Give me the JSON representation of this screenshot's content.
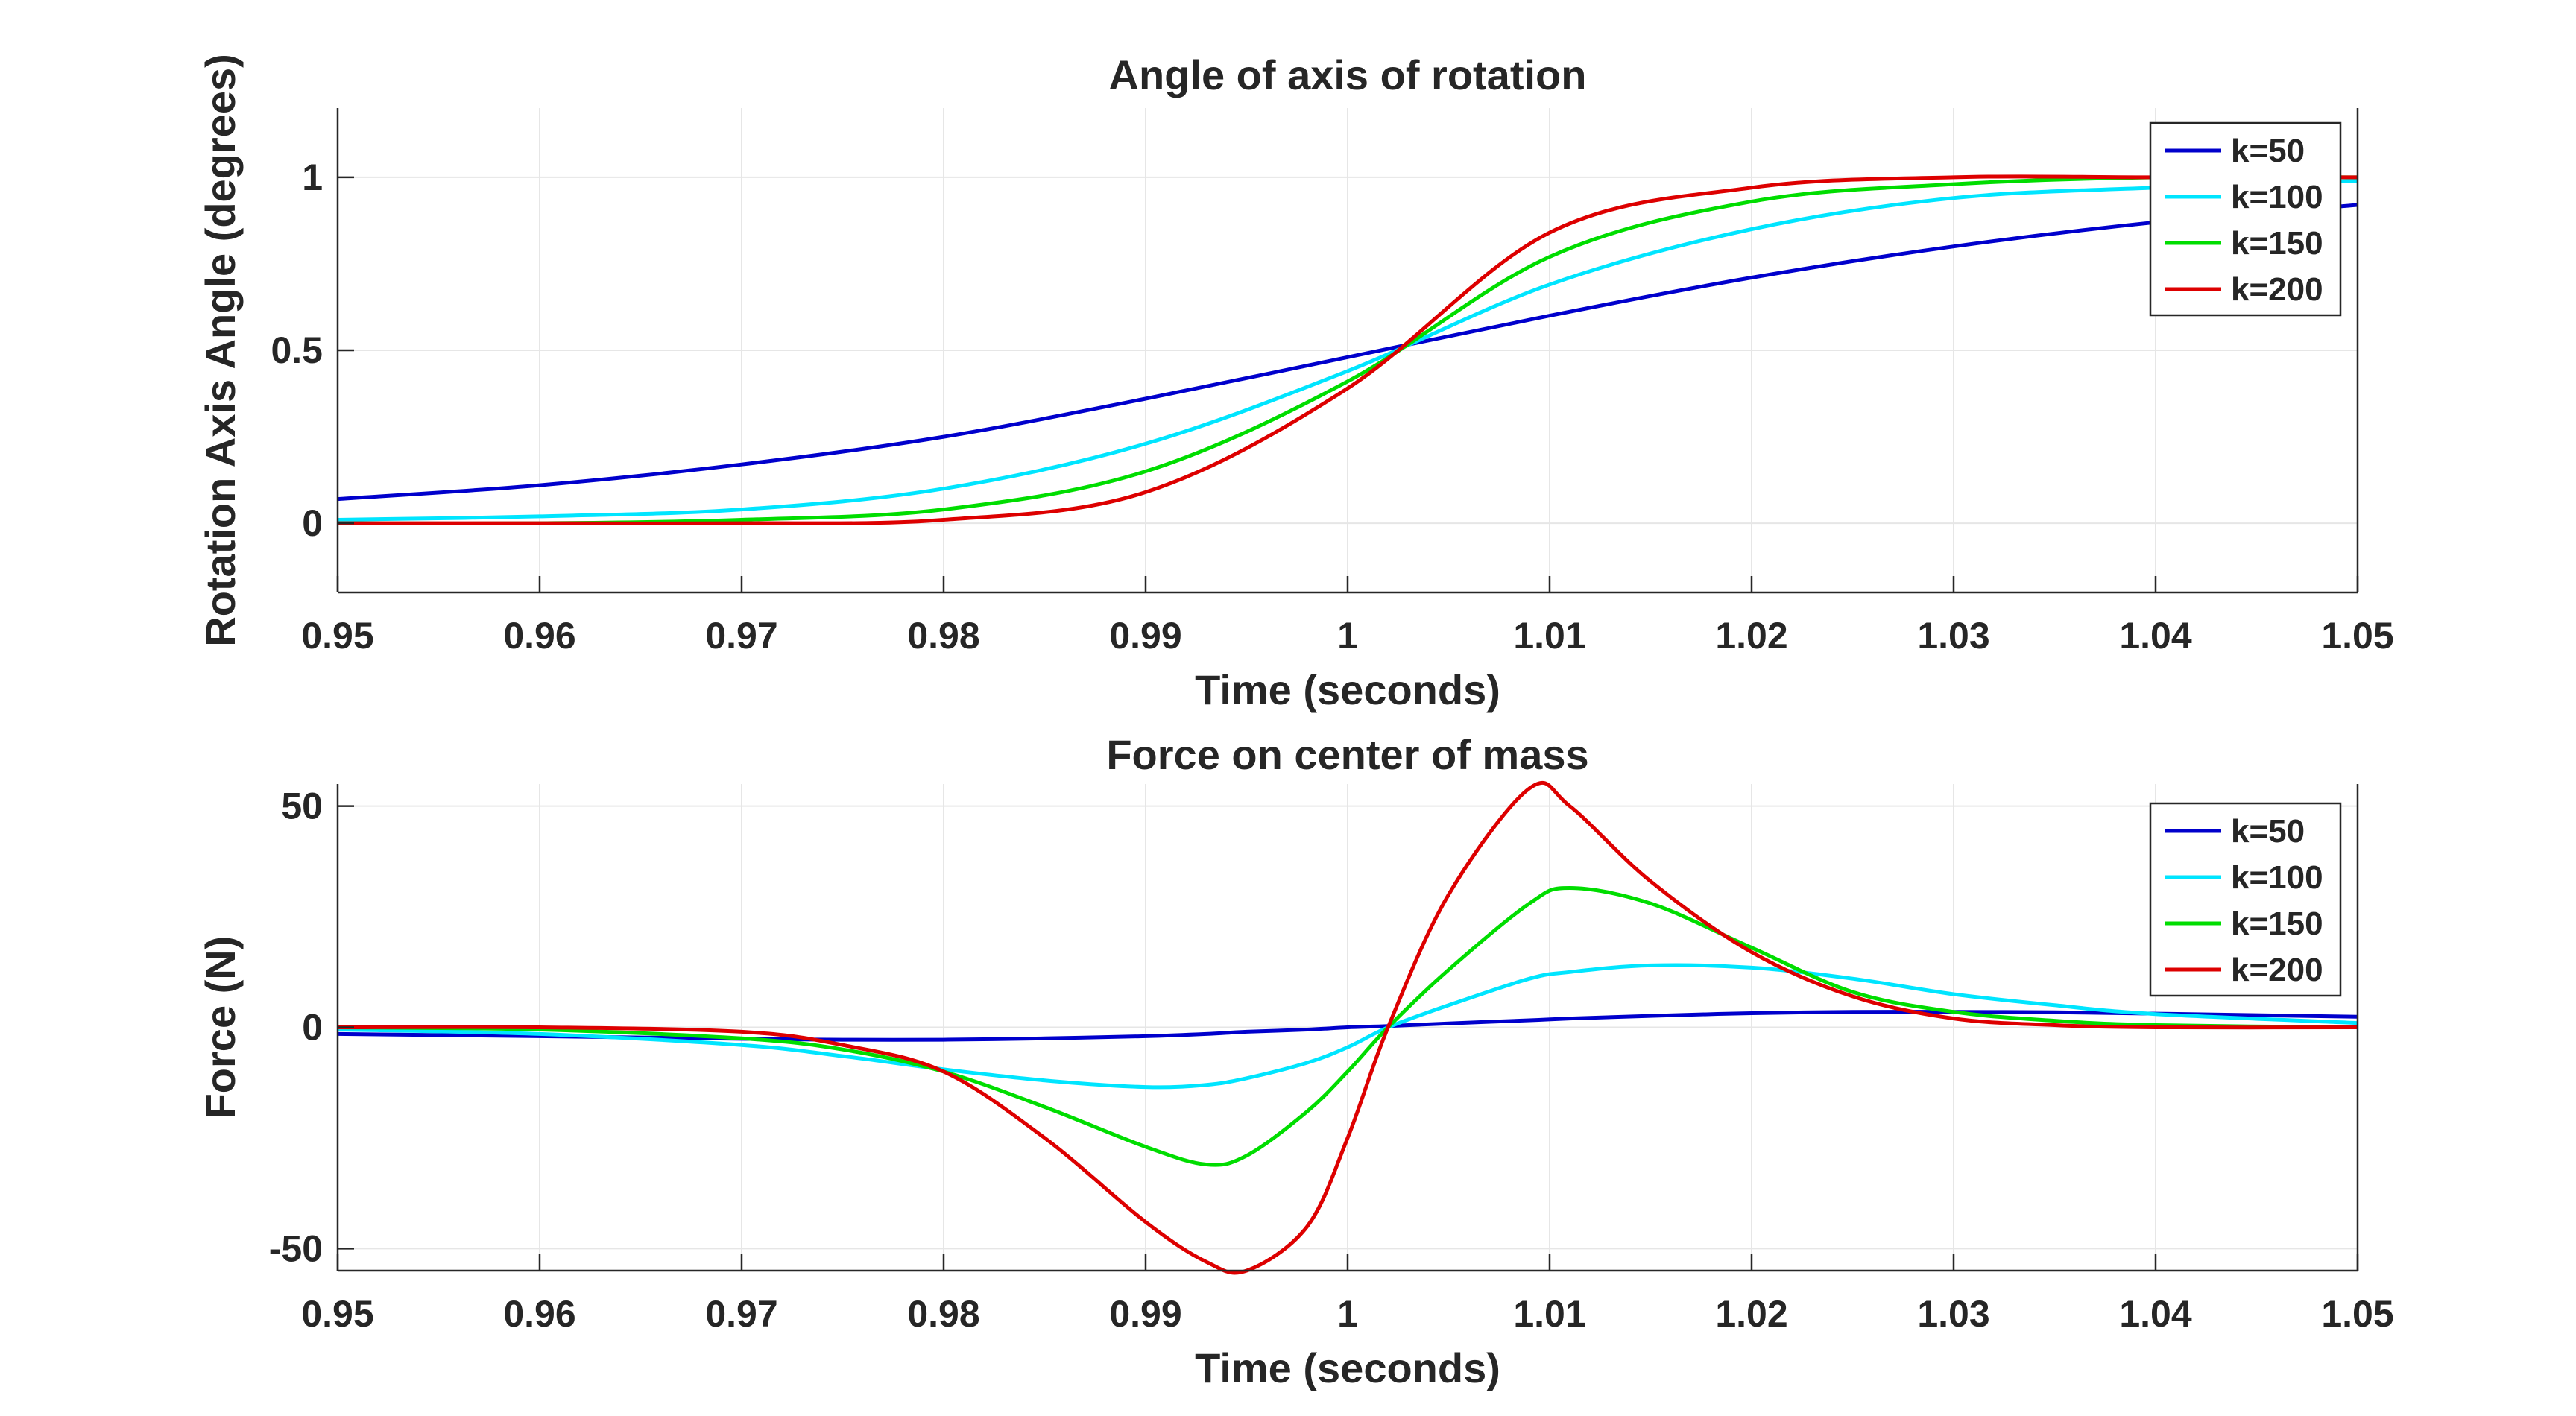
{
  "chart_data": [
    {
      "type": "line",
      "title": "Angle of axis of rotation",
      "xlabel": "Time (seconds)",
      "ylabel": "Rotation Axis Angle (degrees)",
      "xlim": [
        0.95,
        1.05
      ],
      "ylim": [
        -0.2,
        1.2
      ],
      "xticks": [
        0.95,
        0.96,
        0.97,
        0.98,
        0.99,
        1.0,
        1.01,
        1.02,
        1.03,
        1.04,
        1.05
      ],
      "xtick_labels": [
        "0.95",
        "0.96",
        "0.97",
        "0.98",
        "0.99",
        "1",
        "1.01",
        "1.02",
        "1.03",
        "1.04",
        "1.05"
      ],
      "yticks": [
        0,
        0.5,
        1
      ],
      "ytick_labels": [
        "0",
        "0.5",
        "1"
      ],
      "grid": true,
      "legend": "top-right",
      "x": [
        0.95,
        0.96,
        0.97,
        0.98,
        0.99,
        1.0,
        1.01,
        1.02,
        1.03,
        1.04,
        1.05
      ],
      "series": [
        {
          "name": "k=50",
          "color": "#0000cc",
          "values": [
            0.07,
            0.11,
            0.17,
            0.25,
            0.36,
            0.48,
            0.6,
            0.71,
            0.8,
            0.87,
            0.92
          ]
        },
        {
          "name": "k=100",
          "color": "#00e5ff",
          "values": [
            0.01,
            0.02,
            0.04,
            0.1,
            0.23,
            0.44,
            0.69,
            0.85,
            0.94,
            0.97,
            0.99
          ]
        },
        {
          "name": "k=150",
          "color": "#00dd00",
          "values": [
            0.0,
            0.0,
            0.01,
            0.04,
            0.15,
            0.41,
            0.77,
            0.93,
            0.98,
            1.0,
            1.0
          ]
        },
        {
          "name": "k=200",
          "color": "#dd0000",
          "values": [
            0.0,
            0.0,
            0.0,
            0.01,
            0.09,
            0.39,
            0.84,
            0.97,
            1.0,
            1.0,
            1.0
          ]
        }
      ]
    },
    {
      "type": "line",
      "title": "Force on center of mass",
      "xlabel": "Time (seconds)",
      "ylabel": "Force (N)",
      "xlim": [
        0.95,
        1.05
      ],
      "ylim": [
        -55,
        55
      ],
      "xticks": [
        0.95,
        0.96,
        0.97,
        0.98,
        0.99,
        1.0,
        1.01,
        1.02,
        1.03,
        1.04,
        1.05
      ],
      "xtick_labels": [
        "0.95",
        "0.96",
        "0.97",
        "0.98",
        "0.99",
        "1",
        "1.01",
        "1.02",
        "1.03",
        "1.04",
        "1.05"
      ],
      "yticks": [
        -50,
        0,
        50
      ],
      "ytick_labels": [
        "-50",
        "0",
        "50"
      ],
      "grid": true,
      "legend": "top-right",
      "x": [
        0.95,
        0.96,
        0.97,
        0.975,
        0.98,
        0.985,
        0.99,
        0.993,
        0.995,
        0.998,
        1.0,
        1.002,
        1.005,
        1.009,
        1.011,
        1.015,
        1.02,
        1.025,
        1.03,
        1.035,
        1.04,
        1.05
      ],
      "series": [
        {
          "name": "k=50",
          "color": "#0000cc",
          "values": [
            -1.5,
            -2.0,
            -2.6,
            -2.8,
            -2.8,
            -2.5,
            -2.0,
            -1.5,
            -1.0,
            -0.5,
            0.0,
            0.3,
            0.9,
            1.6,
            2.0,
            2.6,
            3.2,
            3.5,
            3.5,
            3.4,
            3.1,
            2.4
          ]
        },
        {
          "name": "k=100",
          "color": "#00e5ff",
          "values": [
            -0.5,
            -1.5,
            -4.0,
            -6.5,
            -9.5,
            -12.0,
            -13.5,
            -13.0,
            -11.5,
            -8.0,
            -4.5,
            0.0,
            5.0,
            11.0,
            12.5,
            14.0,
            13.5,
            11.0,
            7.5,
            5.0,
            3.0,
            1.0
          ]
        },
        {
          "name": "k=150",
          "color": "#00dd00",
          "values": [
            0.0,
            -0.5,
            -2.5,
            -5.0,
            -10.0,
            -18.0,
            -27.0,
            -31.0,
            -29.0,
            -19.0,
            -10.0,
            0.0,
            13.0,
            28.0,
            31.5,
            28.0,
            18.0,
            8.0,
            3.5,
            1.5,
            0.5,
            0.0
          ]
        },
        {
          "name": "k=200",
          "color": "#dd0000",
          "values": [
            0.0,
            0.0,
            -1.0,
            -4.0,
            -10.0,
            -25.0,
            -44.0,
            -53.0,
            -55.0,
            -45.0,
            -25.0,
            0.0,
            30.0,
            54.0,
            50.0,
            33.0,
            17.0,
            7.0,
            2.0,
            0.5,
            0.0,
            0.0
          ]
        }
      ]
    }
  ]
}
